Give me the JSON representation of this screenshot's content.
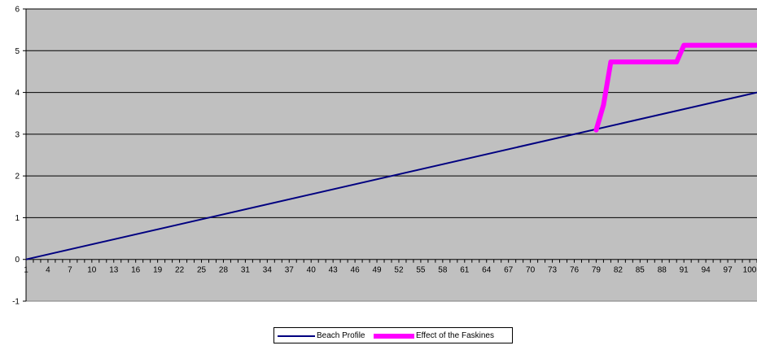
{
  "chart_data": {
    "type": "line",
    "title": "",
    "xlabel": "",
    "ylabel": "",
    "ylim": [
      -1,
      6
    ],
    "yticks": [
      "-1",
      "0",
      "1",
      "2",
      "3",
      "4",
      "5",
      "6"
    ],
    "xticks": [
      "1",
      "4",
      "7",
      "10",
      "13",
      "16",
      "19",
      "22",
      "25",
      "28",
      "31",
      "34",
      "37",
      "40",
      "43",
      "46",
      "49",
      "52",
      "55",
      "58",
      "61",
      "64",
      "67",
      "70",
      "73",
      "76",
      "79",
      "82",
      "85",
      "88",
      "91",
      "94",
      "97",
      "100"
    ],
    "x_range": [
      1,
      101
    ],
    "grid": "horizontal",
    "plot_background": "#c0c0c0",
    "legend_position": "bottom",
    "series": [
      {
        "name": "Beach Profile",
        "color": "#000080",
        "x": [
          1,
          101
        ],
        "y": [
          0,
          4
        ]
      },
      {
        "name": "Effect of the Faskines",
        "color": "#ff00ff",
        "x": [
          79,
          80,
          81,
          82,
          83,
          84,
          85,
          86,
          87,
          88,
          89,
          90,
          91,
          92,
          93,
          94,
          95,
          96,
          97,
          98,
          99,
          100,
          101
        ],
        "y": [
          3.1,
          3.7,
          4.73,
          4.73,
          4.73,
          4.73,
          4.73,
          4.73,
          4.73,
          4.73,
          4.73,
          4.73,
          5.13,
          5.13,
          5.13,
          5.13,
          5.13,
          5.13,
          5.13,
          5.13,
          5.13,
          5.13,
          5.13
        ]
      }
    ]
  }
}
